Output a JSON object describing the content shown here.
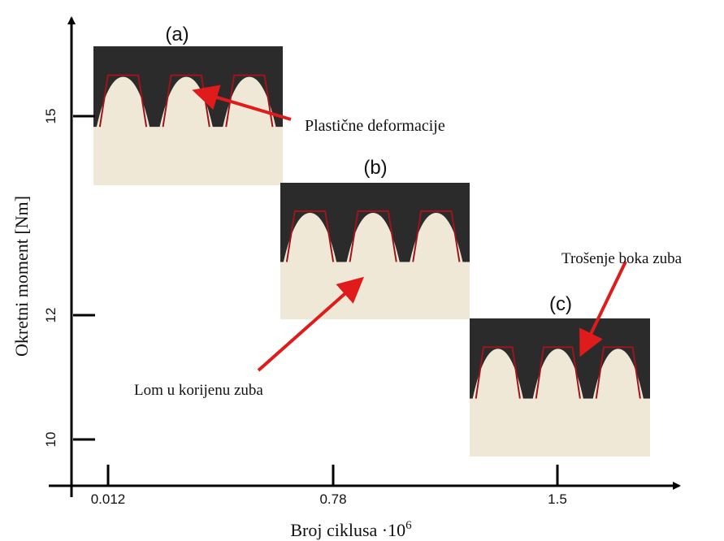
{
  "axes": {
    "y_title": "Okretni moment [Nm]",
    "x_title": "Broj ciklusa ·10",
    "x_title_exponent": "6",
    "y_ticks": [
      "15",
      "12",
      "10"
    ],
    "x_ticks": [
      "0.012",
      "0.78",
      "1.5"
    ]
  },
  "panels": [
    {
      "label": "(a)",
      "annotation": "Plastične deformacije"
    },
    {
      "label": "(b)",
      "annotation": "Lom u korijenu zuba"
    },
    {
      "label": "(c)",
      "annotation": "Trošenje boka zuba"
    }
  ]
}
